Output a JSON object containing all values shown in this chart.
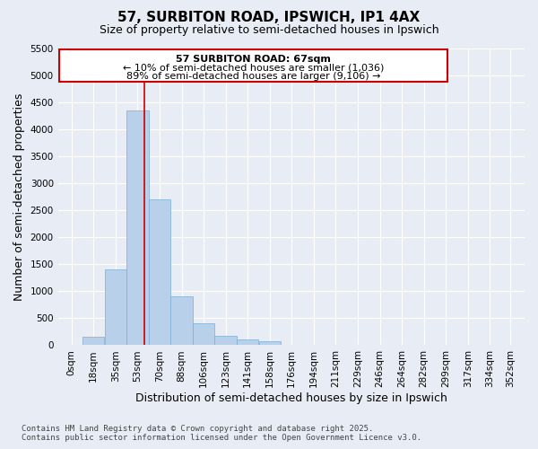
{
  "title_line1": "57, SURBITON ROAD, IPSWICH, IP1 4AX",
  "title_line2": "Size of property relative to semi-detached houses in Ipswich",
  "xlabel": "Distribution of semi-detached houses by size in Ipswich",
  "ylabel": "Number of semi-detached properties",
  "annotation_line1": "57 SURBITON ROAD: 67sqm",
  "annotation_line2": "← 10% of semi-detached houses are smaller (1,036)",
  "annotation_line3": "89% of semi-detached houses are larger (9,106) →",
  "bar_width": 17.65,
  "bar_left_edges": [
    0,
    17.65,
    35.3,
    52.95,
    70.6,
    88.25,
    105.9,
    123.55,
    141.2,
    158.85,
    176.5,
    194.15,
    211.8,
    229.45,
    247.1,
    264.75,
    282.4,
    300.05,
    317.7,
    335.35,
    352.0
  ],
  "bar_heights": [
    10,
    150,
    1400,
    4350,
    2700,
    900,
    400,
    175,
    100,
    75,
    5,
    2,
    1,
    0,
    0,
    0,
    0,
    0,
    0,
    0,
    0
  ],
  "tick_labels": [
    "0sqm",
    "18sqm",
    "35sqm",
    "53sqm",
    "70sqm",
    "88sqm",
    "106sqm",
    "123sqm",
    "141sqm",
    "158sqm",
    "176sqm",
    "194sqm",
    "211sqm",
    "229sqm",
    "246sqm",
    "264sqm",
    "282sqm",
    "299sqm",
    "317sqm",
    "334sqm",
    "352sqm"
  ],
  "bar_color": "#b8d0ea",
  "bar_edge_color": "#7aadd4",
  "red_line_x": 67,
  "ylim": [
    0,
    5500
  ],
  "yticks": [
    0,
    500,
    1000,
    1500,
    2000,
    2500,
    3000,
    3500,
    4000,
    4500,
    5000,
    5500
  ],
  "bg_color": "#e8edf5",
  "plot_bg_color": "#e8edf5",
  "grid_color": "#ffffff",
  "footer_line1": "Contains HM Land Registry data © Crown copyright and database right 2025.",
  "footer_line2": "Contains public sector information licensed under the Open Government Licence v3.0.",
  "annotation_box_color": "#cc0000",
  "title_fontsize": 11,
  "subtitle_fontsize": 9,
  "axis_label_fontsize": 9,
  "tick_fontsize": 7.5,
  "annotation_fontsize": 8,
  "footer_fontsize": 6.5
}
